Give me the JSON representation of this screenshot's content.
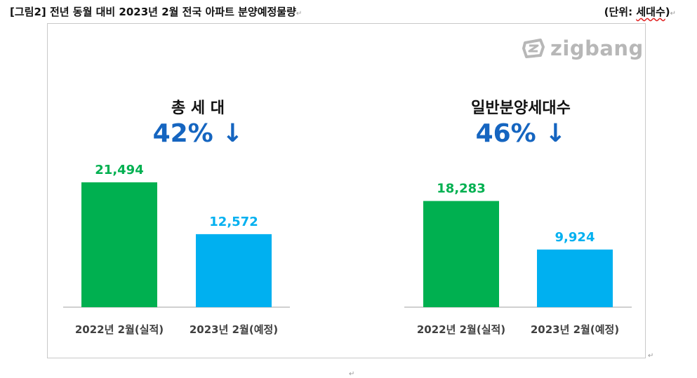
{
  "document": {
    "title": "[그림2] 전년 동월 대비 2023년 2월 전국 아파트 분양예정물량",
    "unit_prefix": "(단위: ",
    "unit_word": "세대수",
    "unit_suffix": ")"
  },
  "logo": {
    "text": "zigbang",
    "icon": "zigbang-logo-icon",
    "color": "#b7b7b7"
  },
  "colors": {
    "actual": "#00b050",
    "planned": "#00b0f0",
    "change": "#1565c0"
  },
  "chart_data": [
    {
      "type": "bar",
      "title": "총 세 대",
      "change_label": "42% ↓",
      "categories": [
        "2022년 2월(실적)",
        "2023년 2월(예정)"
      ],
      "values": [
        21494,
        12572
      ],
      "value_labels": [
        "21,494",
        "12,572"
      ],
      "ylim": [
        0,
        30000
      ],
      "grid": false
    },
    {
      "type": "bar",
      "title": "일반분양세대수",
      "change_label": "46% ↓",
      "categories": [
        "2022년 2월(실적)",
        "2023년 2월(예정)"
      ],
      "values": [
        18283,
        9924
      ],
      "value_labels": [
        "18,283",
        "9,924"
      ],
      "ylim": [
        0,
        30000
      ],
      "grid": false
    }
  ]
}
